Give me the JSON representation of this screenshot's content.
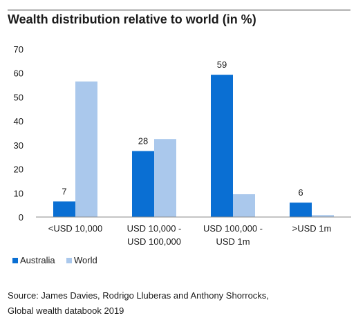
{
  "title": "Wealth distribution relative to world (in %)",
  "source_lines": [
    "Source: James Davies, Rodrigo Lluberas and Anthony Shorrocks,",
    "Global wealth databook 2019"
  ],
  "colors": {
    "Australia": "#0a6fd3",
    "World": "#aac8ec"
  },
  "chart_data": {
    "type": "bar",
    "title": "Wealth distribution relative to world (in %)",
    "categories": [
      [
        "<USD 10,000"
      ],
      [
        "USD 10,000 -",
        "USD 100,000"
      ],
      [
        "USD 100,000 -",
        "USD 1m"
      ],
      [
        ">USD 1m"
      ]
    ],
    "series": [
      {
        "name": "Australia",
        "values": [
          6.5,
          27.5,
          59.3,
          6.0
        ],
        "labels": [
          "7",
          "28",
          "59",
          "6"
        ]
      },
      {
        "name": "World",
        "values": [
          56.5,
          32.5,
          9.5,
          0.8
        ]
      }
    ],
    "ylim": [
      0,
      70
    ],
    "yticks": [
      0,
      10,
      20,
      30,
      40,
      50,
      60,
      70
    ],
    "legend": "bottom-left",
    "grid": false
  }
}
